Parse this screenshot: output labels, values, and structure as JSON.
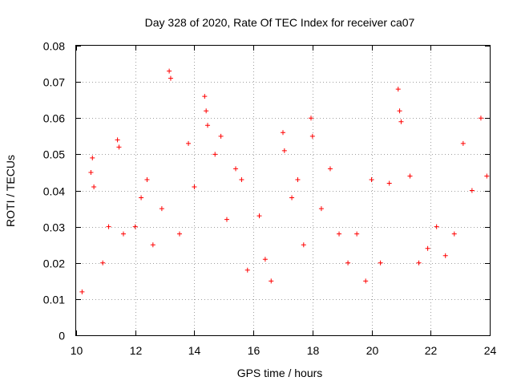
{
  "chart_data": {
    "type": "scatter",
    "title": "Day 328 of 2020, Rate Of TEC Index for receiver ca07",
    "xlabel": "GPS time / hours",
    "ylabel": "ROTI / TECUs",
    "xlim": [
      10,
      24
    ],
    "ylim": [
      0,
      0.08
    ],
    "x_ticks": [
      "10",
      "12",
      "14",
      "16",
      "18",
      "20",
      "22",
      "24"
    ],
    "y_ticks": [
      "0",
      "0.01",
      "0.02",
      "0.03",
      "0.04",
      "0.05",
      "0.06",
      "0.07",
      "0.08"
    ],
    "grid": true,
    "marker": "plus",
    "color": "#ff0000",
    "series": [
      {
        "x": [
          10.2,
          10.5,
          10.55,
          10.6,
          10.9,
          11.1,
          11.4,
          11.45,
          11.6,
          12.0,
          12.2,
          12.4,
          12.6,
          12.9,
          13.15,
          13.2,
          13.5,
          13.8,
          14.0,
          14.35,
          14.4,
          14.45,
          14.7,
          14.9,
          15.1,
          15.4,
          15.6,
          15.8,
          16.2,
          16.4,
          16.6,
          17.0,
          17.05,
          17.3,
          17.5,
          17.7,
          17.95,
          18.0,
          18.3,
          18.6,
          18.9,
          19.2,
          19.5,
          19.8,
          20.0,
          20.3,
          20.6,
          20.9,
          20.95,
          21.0,
          21.3,
          21.6,
          21.9,
          22.2,
          22.5,
          22.8,
          23.1,
          23.4,
          23.7,
          23.9
        ],
        "y": [
          0.012,
          0.045,
          0.049,
          0.041,
          0.02,
          0.03,
          0.054,
          0.052,
          0.028,
          0.03,
          0.038,
          0.043,
          0.025,
          0.035,
          0.073,
          0.071,
          0.028,
          0.053,
          0.041,
          0.066,
          0.062,
          0.058,
          0.05,
          0.055,
          0.032,
          0.046,
          0.043,
          0.018,
          0.033,
          0.021,
          0.015,
          0.056,
          0.051,
          0.038,
          0.043,
          0.025,
          0.06,
          0.055,
          0.035,
          0.046,
          0.028,
          0.02,
          0.028,
          0.015,
          0.043,
          0.02,
          0.042,
          0.068,
          0.062,
          0.059,
          0.044,
          0.02,
          0.024,
          0.03,
          0.022,
          0.028,
          0.053,
          0.04,
          0.06,
          0.044
        ]
      }
    ]
  }
}
